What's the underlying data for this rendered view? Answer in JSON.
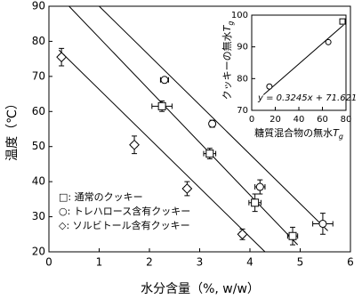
{
  "chart_data": [
    {
      "type": "scatter",
      "y_label": "温度（℃）",
      "x_label": "水分含量（%, w/w）",
      "xlim": [
        0,
        6
      ],
      "xticks": [
        0,
        1,
        2,
        3,
        4,
        5,
        6
      ],
      "ylim": [
        20,
        90
      ],
      "yticks": [
        20,
        30,
        40,
        50,
        60,
        70,
        80,
        90
      ],
      "series": [
        {
          "name": "□: 通常のクッキー",
          "marker": "square",
          "color": "#000000",
          "x": [
            2.25,
            3.2,
            4.1,
            4.85
          ],
          "values": [
            61.5,
            48,
            34,
            24.5
          ],
          "xerr": [
            0.2,
            0.12,
            0.12,
            0.1
          ],
          "yerr": [
            1.5,
            1.5,
            2.5,
            2.5
          ]
        },
        {
          "name": "○: トレハロース含有クッキー",
          "marker": "circle",
          "color": "#000000",
          "x": [
            2.3,
            3.25,
            4.2,
            5.45
          ],
          "values": [
            69,
            56.5,
            38.5,
            28
          ],
          "xerr": [
            0.08,
            0.05,
            0.1,
            0.2
          ],
          "yerr": [
            0.5,
            1,
            2,
            3
          ]
        },
        {
          "name": "◇: ソルビトール含有クッキー",
          "marker": "diamond",
          "color": "#000000",
          "x": [
            0.25,
            1.7,
            2.75,
            3.85
          ],
          "values": [
            75.5,
            50.5,
            38,
            25
          ],
          "xerr": [
            0.05,
            0.05,
            0.05,
            0.05
          ],
          "yerr": [
            2.5,
            2.5,
            2,
            1.5
          ]
        }
      ],
      "fits": [
        {
          "x": [
            0.4,
            4.95
          ],
          "values": [
            90,
            22
          ]
        },
        {
          "x": [
            1.0,
            5.55
          ],
          "values": [
            90,
            26
          ]
        },
        {
          "x": [
            0.2,
            4.3
          ],
          "values": [
            77.5,
            20
          ]
        }
      ]
    },
    {
      "type": "scatter",
      "y_label": "クッキーの無水",
      "x_label": "糖質混合物の無水",
      "var": "T",
      "sub": "g",
      "equation": "y = 0.3245x + 71.621",
      "xlim": [
        0,
        80
      ],
      "xticks": [
        0,
        20,
        40,
        60,
        80
      ],
      "ylim": [
        70,
        100
      ],
      "yticks": [
        70,
        80,
        90,
        100
      ],
      "series": [
        {
          "x": [
            15,
            65,
            77
          ],
          "values": [
            77.5,
            91.5,
            98
          ],
          "markers": [
            "circle",
            "circle",
            "square"
          ],
          "color": "#000000"
        }
      ],
      "fits": [
        {
          "x": [
            10,
            78
          ],
          "values": [
            74.9,
            96.9
          ]
        }
      ]
    }
  ]
}
